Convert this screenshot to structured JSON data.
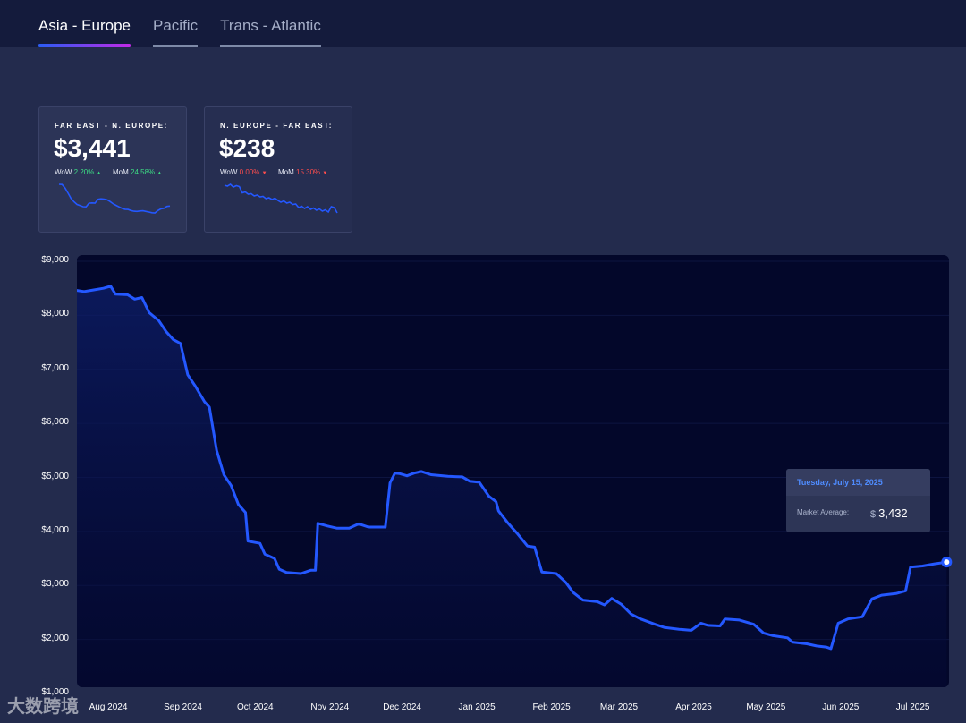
{
  "tabs": [
    {
      "label": "Asia - Europe",
      "active": true
    },
    {
      "label": "Pacific",
      "active": false
    },
    {
      "label": "Trans - Atlantic",
      "active": false
    }
  ],
  "cards": [
    {
      "title": "FAR EAST - N. EUROPE:",
      "value": "$3,441",
      "wow_label": "WoW",
      "wow": "2.20%",
      "wow_direction": "up",
      "mom_label": "MoM",
      "mom": "24.58%",
      "mom_direction": "up",
      "arrow_up": "▲",
      "spark": [
        8450,
        8400,
        7600,
        6400,
        5200,
        4400,
        3800,
        3550,
        3300,
        3250,
        4100,
        4150,
        4100,
        5000,
        5100,
        5050,
        4900,
        4500,
        4000,
        3600,
        3250,
        2900,
        2700,
        2650,
        2400,
        2250,
        2200,
        2300,
        2350,
        2200,
        2050,
        1900,
        1850,
        2400,
        2800,
        2900,
        3350,
        3441
      ]
    },
    {
      "title": "N. EUROPE - FAR EAST:",
      "value": "$238",
      "wow_label": "WoW",
      "wow": "0.00%",
      "wow_direction": "down",
      "mom_label": "MoM",
      "mom": "15.30%",
      "mom_direction": "down",
      "arrow_down": "▼",
      "spark": [
        300,
        298,
        302,
        296,
        299,
        297,
        283,
        285,
        280,
        281,
        276,
        278,
        274,
        275,
        270,
        272,
        268,
        271,
        266,
        262,
        265,
        260,
        262,
        257,
        258,
        250,
        253,
        248,
        252,
        246,
        249,
        244,
        247,
        242,
        245,
        240,
        252,
        250,
        238
      ]
    }
  ],
  "colors": {
    "line": "#2458ff",
    "plot_bg": "#03072a",
    "page_bg": "#232b4d",
    "up": "#3ddc84",
    "down": "#ff4d4d"
  },
  "chart_data": {
    "type": "area",
    "ylim": [
      1000,
      9000
    ],
    "yticks": [
      "$9,000",
      "$8,000",
      "$7,000",
      "$6,000",
      "$5,000",
      "$4,000",
      "$3,000",
      "$2,000",
      "$1,000"
    ],
    "ytick_values": [
      9000,
      8000,
      7000,
      6000,
      5000,
      4000,
      3000,
      2000,
      1000
    ],
    "xtick_labels": [
      "Aug 2024",
      "Sep 2024",
      "Oct 2024",
      "Nov 2024",
      "Dec 2024",
      "Jan 2025",
      "Feb 2025",
      "Mar 2025",
      "Apr 2025",
      "May 2025",
      "Jun 2025",
      "Jul 2025"
    ],
    "xtick_dates": [
      "2024-08-01",
      "2024-09-01",
      "2024-10-01",
      "2024-11-01",
      "2024-12-01",
      "2025-01-01",
      "2025-02-01",
      "2025-03-01",
      "2025-04-01",
      "2025-05-01",
      "2025-06-01",
      "2025-07-01"
    ],
    "x_range": [
      "2024-07-19",
      "2025-07-16"
    ],
    "series": [
      {
        "points": [
          [
            "2024-07-19",
            8460
          ],
          [
            "2024-07-22",
            8440
          ],
          [
            "2024-07-26",
            8470
          ],
          [
            "2024-07-30",
            8500
          ],
          [
            "2024-08-02",
            8540
          ],
          [
            "2024-08-04",
            8390
          ],
          [
            "2024-08-09",
            8380
          ],
          [
            "2024-08-12",
            8300
          ],
          [
            "2024-08-15",
            8330
          ],
          [
            "2024-08-18",
            8050
          ],
          [
            "2024-08-22",
            7900
          ],
          [
            "2024-08-25",
            7700
          ],
          [
            "2024-08-28",
            7550
          ],
          [
            "2024-08-31",
            7480
          ],
          [
            "2024-09-03",
            6900
          ],
          [
            "2024-09-06",
            6700
          ],
          [
            "2024-09-10",
            6400
          ],
          [
            "2024-09-12",
            6300
          ],
          [
            "2024-09-15",
            5500
          ],
          [
            "2024-09-18",
            5050
          ],
          [
            "2024-09-21",
            4850
          ],
          [
            "2024-09-24",
            4500
          ],
          [
            "2024-09-27",
            4350
          ],
          [
            "2024-09-28",
            3820
          ],
          [
            "2024-10-03",
            3780
          ],
          [
            "2024-10-05",
            3580
          ],
          [
            "2024-10-09",
            3500
          ],
          [
            "2024-10-11",
            3300
          ],
          [
            "2024-10-14",
            3240
          ],
          [
            "2024-10-20",
            3220
          ],
          [
            "2024-10-24",
            3280
          ],
          [
            "2024-10-26",
            3280
          ],
          [
            "2024-10-27",
            4150
          ],
          [
            "2024-10-31",
            4100
          ],
          [
            "2024-11-04",
            4060
          ],
          [
            "2024-11-09",
            4060
          ],
          [
            "2024-11-13",
            4140
          ],
          [
            "2024-11-17",
            4080
          ],
          [
            "2024-11-22",
            4080
          ],
          [
            "2024-11-24",
            4080
          ],
          [
            "2024-11-26",
            4900
          ],
          [
            "2024-11-28",
            5080
          ],
          [
            "2024-11-30",
            5070
          ],
          [
            "2024-12-03",
            5030
          ],
          [
            "2024-12-06",
            5080
          ],
          [
            "2024-12-09",
            5110
          ],
          [
            "2024-12-13",
            5050
          ],
          [
            "2024-12-20",
            5020
          ],
          [
            "2024-12-26",
            5010
          ],
          [
            "2024-12-29",
            4930
          ],
          [
            "2025-01-02",
            4910
          ],
          [
            "2025-01-06",
            4650
          ],
          [
            "2025-01-09",
            4550
          ],
          [
            "2025-01-10",
            4380
          ],
          [
            "2025-01-14",
            4150
          ],
          [
            "2025-01-18",
            3950
          ],
          [
            "2025-01-22",
            3730
          ],
          [
            "2025-01-25",
            3710
          ],
          [
            "2025-01-28",
            3250
          ],
          [
            "2025-02-03",
            3220
          ],
          [
            "2025-02-07",
            3050
          ],
          [
            "2025-02-10",
            2870
          ],
          [
            "2025-02-14",
            2730
          ],
          [
            "2025-02-20",
            2700
          ],
          [
            "2025-02-23",
            2640
          ],
          [
            "2025-02-26",
            2760
          ],
          [
            "2025-03-02",
            2650
          ],
          [
            "2025-03-06",
            2470
          ],
          [
            "2025-03-10",
            2380
          ],
          [
            "2025-03-16",
            2280
          ],
          [
            "2025-03-20",
            2220
          ],
          [
            "2025-03-26",
            2190
          ],
          [
            "2025-03-31",
            2170
          ],
          [
            "2025-04-04",
            2300
          ],
          [
            "2025-04-07",
            2260
          ],
          [
            "2025-04-12",
            2250
          ],
          [
            "2025-04-14",
            2380
          ],
          [
            "2025-04-20",
            2360
          ],
          [
            "2025-04-26",
            2280
          ],
          [
            "2025-04-30",
            2120
          ],
          [
            "2025-05-04",
            2070
          ],
          [
            "2025-05-10",
            2030
          ],
          [
            "2025-05-12",
            1950
          ],
          [
            "2025-05-18",
            1920
          ],
          [
            "2025-05-22",
            1880
          ],
          [
            "2025-05-26",
            1860
          ],
          [
            "2025-05-28",
            1830
          ],
          [
            "2025-05-31",
            2300
          ],
          [
            "2025-06-04",
            2380
          ],
          [
            "2025-06-10",
            2420
          ],
          [
            "2025-06-14",
            2750
          ],
          [
            "2025-06-18",
            2820
          ],
          [
            "2025-06-24",
            2850
          ],
          [
            "2025-06-28",
            2900
          ],
          [
            "2025-06-30",
            3340
          ],
          [
            "2025-07-05",
            3360
          ],
          [
            "2025-07-10",
            3400
          ],
          [
            "2025-07-15",
            3432
          ]
        ]
      }
    ],
    "tooltip": {
      "date": "Tuesday, July 15, 2025",
      "label": "Market Average:",
      "currency": "$",
      "value": "3,432",
      "point": [
        "2025-07-15",
        3432
      ]
    },
    "grid": true
  },
  "watermark": "大数跨境"
}
